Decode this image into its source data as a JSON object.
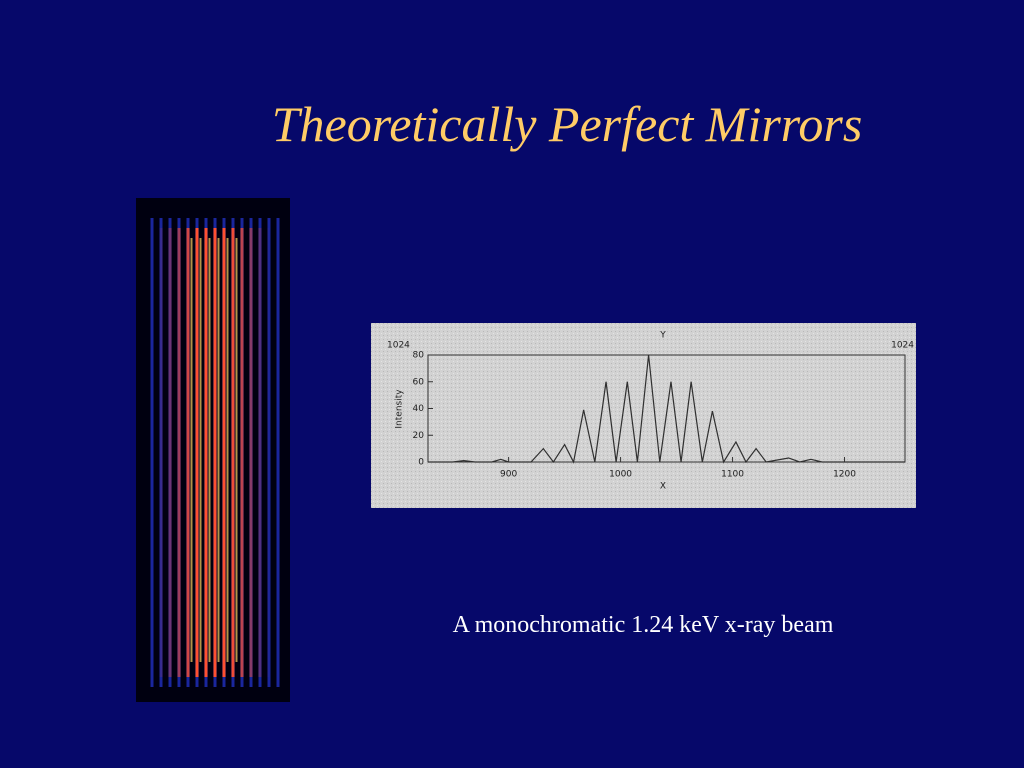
{
  "slide": {
    "title": "Theoretically Perfect Mirrors",
    "caption": "A monochromatic 1.24 keV x-ray beam"
  },
  "chart_data": {
    "type": "line",
    "top_label": "Y",
    "corner_labels": [
      "1024",
      "1024"
    ],
    "xlabel": "X",
    "ylabel": "Intensity",
    "x": [
      828,
      850,
      860,
      870,
      885,
      893,
      900,
      920,
      931,
      940,
      950,
      958,
      967,
      977,
      987,
      996,
      1006,
      1015,
      1025,
      1035,
      1045,
      1054,
      1063,
      1073,
      1082,
      1092,
      1103,
      1112,
      1121,
      1130,
      1150,
      1160,
      1170,
      1180,
      1254
    ],
    "series": [
      {
        "name": "Intensity",
        "color": "#303030",
        "values": [
          0,
          0,
          1,
          0,
          0,
          2,
          0,
          0,
          10,
          0,
          13,
          0,
          39,
          0,
          60,
          0,
          60,
          0,
          80,
          0,
          60,
          0,
          60,
          0,
          38,
          0,
          15,
          0,
          10,
          0,
          3,
          0,
          2,
          0,
          0
        ]
      }
    ],
    "xlim": [
      828,
      1254
    ],
    "ylim": [
      0,
      80
    ],
    "xticks": [
      900,
      1000,
      1100,
      1200
    ],
    "yticks": [
      0,
      20,
      40,
      60,
      80
    ]
  }
}
